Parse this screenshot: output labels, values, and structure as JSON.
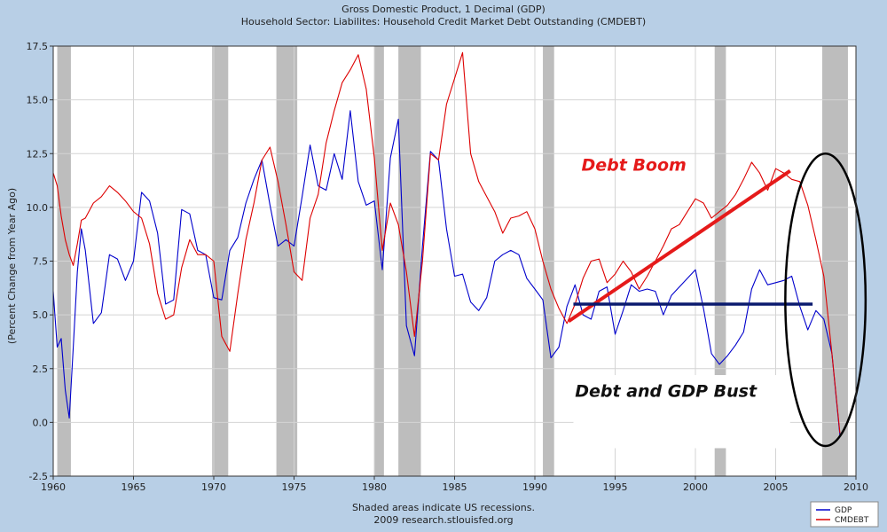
{
  "chart_data": {
    "type": "line",
    "title": "Gross Domestic Product, 1 Decimal (GDP)",
    "subtitle": "Household Sector: Liabilites: Household Credit Market Debt Outstanding (CMDEBT)",
    "ylabel": "(Percent Change from Year Ago)",
    "xlabel": "",
    "xlim": [
      1960,
      2010
    ],
    "ylim": [
      -2.5,
      17.5
    ],
    "x_ticks": [
      "1960",
      "1965",
      "1970",
      "1975",
      "1980",
      "1985",
      "1990",
      "1995",
      "2000",
      "2005",
      "2010"
    ],
    "y_ticks": [
      "17.5",
      "15.0",
      "12.5",
      "10.0",
      "7.5",
      "5.0",
      "2.5",
      "0.0",
      "-2.5"
    ],
    "recessions": [
      [
        1960.25,
        1961.1
      ],
      [
        1969.9,
        1970.9
      ],
      [
        1973.9,
        1975.2
      ],
      [
        1980.0,
        1980.6
      ],
      [
        1981.5,
        1982.9
      ],
      [
        1990.5,
        1991.2
      ],
      [
        2001.2,
        2001.9
      ],
      [
        2007.9,
        2009.5
      ]
    ],
    "series": [
      {
        "name": "GDP",
        "color": "#0000cc",
        "x": [
          1960.0,
          1960.25,
          1960.5,
          1960.75,
          1961.0,
          1961.25,
          1961.5,
          1961.75,
          1962.0,
          1962.5,
          1963.0,
          1963.5,
          1964.0,
          1964.5,
          1965.0,
          1965.5,
          1966.0,
          1966.5,
          1967.0,
          1967.5,
          1968.0,
          1968.5,
          1969.0,
          1969.5,
          1970.0,
          1970.5,
          1971.0,
          1971.5,
          1972.0,
          1972.5,
          1973.0,
          1973.5,
          1974.0,
          1974.5,
          1975.0,
          1975.5,
          1976.0,
          1976.5,
          1977.0,
          1977.5,
          1978.0,
          1978.5,
          1979.0,
          1979.5,
          1980.0,
          1980.5,
          1981.0,
          1981.5,
          1982.0,
          1982.5,
          1983.0,
          1983.5,
          1984.0,
          1984.5,
          1985.0,
          1985.5,
          1986.0,
          1986.5,
          1987.0,
          1987.5,
          1988.0,
          1988.5,
          1989.0,
          1989.5,
          1990.0,
          1990.5,
          1991.0,
          1991.5,
          1992.0,
          1992.5,
          1993.0,
          1993.5,
          1994.0,
          1994.5,
          1995.0,
          1995.5,
          1996.0,
          1996.5,
          1997.0,
          1997.5,
          1998.0,
          1998.5,
          1999.0,
          1999.5,
          2000.0,
          2000.5,
          2001.0,
          2001.5,
          2002.0,
          2002.5,
          2003.0,
          2003.5,
          2004.0,
          2004.5,
          2005.0,
          2005.5,
          2006.0,
          2006.5,
          2007.0,
          2007.5,
          2008.0,
          2008.5,
          2009.0
        ],
        "values": [
          6.1,
          3.5,
          3.9,
          1.5,
          0.2,
          3.5,
          7.0,
          9.0,
          8.0,
          4.6,
          5.1,
          7.8,
          7.6,
          6.6,
          7.5,
          10.7,
          10.3,
          8.8,
          5.5,
          5.7,
          9.9,
          9.7,
          8.0,
          7.8,
          5.8,
          5.7,
          8.0,
          8.6,
          10.2,
          11.3,
          12.2,
          10.1,
          8.2,
          8.5,
          8.2,
          10.5,
          12.9,
          11.0,
          10.8,
          12.5,
          11.3,
          14.5,
          11.2,
          10.1,
          10.3,
          7.1,
          12.3,
          14.1,
          4.5,
          3.1,
          8.2,
          12.6,
          12.2,
          9.0,
          6.8,
          6.9,
          5.6,
          5.2,
          5.8,
          7.5,
          7.8,
          8.0,
          7.8,
          6.7,
          6.2,
          5.7,
          3.0,
          3.5,
          5.4,
          6.4,
          5.0,
          4.8,
          6.1,
          6.3,
          4.1,
          5.2,
          6.4,
          6.1,
          6.2,
          6.1,
          5.0,
          5.9,
          6.3,
          6.7,
          7.1,
          5.3,
          3.2,
          2.7,
          3.1,
          3.6,
          4.2,
          6.2,
          7.1,
          6.4,
          6.5,
          6.6,
          6.8,
          5.4,
          4.3,
          5.2,
          4.8,
          3.2,
          -0.6
        ]
      },
      {
        "name": "CMDEBT",
        "color": "#dd0000",
        "x": [
          1960.0,
          1960.25,
          1960.5,
          1960.75,
          1961.0,
          1961.25,
          1961.5,
          1961.75,
          1962.0,
          1962.5,
          1963.0,
          1963.5,
          1964.0,
          1964.5,
          1965.0,
          1965.5,
          1966.0,
          1966.5,
          1967.0,
          1967.5,
          1968.0,
          1968.5,
          1969.0,
          1969.5,
          1970.0,
          1970.5,
          1971.0,
          1971.5,
          1972.0,
          1972.5,
          1973.0,
          1973.5,
          1974.0,
          1974.5,
          1975.0,
          1975.5,
          1976.0,
          1976.5,
          1977.0,
          1977.5,
          1978.0,
          1978.5,
          1979.0,
          1979.5,
          1980.0,
          1980.5,
          1981.0,
          1981.5,
          1982.0,
          1982.5,
          1983.0,
          1983.5,
          1984.0,
          1984.5,
          1985.0,
          1985.5,
          1986.0,
          1986.5,
          1987.0,
          1987.5,
          1988.0,
          1988.5,
          1989.0,
          1989.5,
          1990.0,
          1990.5,
          1991.0,
          1991.5,
          1992.0,
          1992.5,
          1993.0,
          1993.5,
          1994.0,
          1994.5,
          1995.0,
          1995.5,
          1996.0,
          1996.5,
          1997.0,
          1997.5,
          1998.0,
          1998.5,
          1999.0,
          1999.5,
          2000.0,
          2000.5,
          2001.0,
          2001.5,
          2002.0,
          2002.5,
          2003.0,
          2003.5,
          2004.0,
          2004.5,
          2005.0,
          2005.5,
          2006.0,
          2006.5,
          2007.0,
          2007.5,
          2008.0,
          2008.5,
          2009.0
        ],
        "values": [
          11.6,
          11.0,
          9.6,
          8.5,
          7.8,
          7.3,
          8.3,
          9.4,
          9.5,
          10.2,
          10.5,
          11.0,
          10.7,
          10.3,
          9.8,
          9.5,
          8.3,
          6.0,
          4.8,
          5.0,
          7.2,
          8.5,
          7.8,
          7.8,
          7.5,
          4.0,
          3.3,
          6.0,
          8.5,
          10.2,
          12.2,
          12.8,
          11.2,
          9.2,
          7.0,
          6.6,
          9.5,
          10.6,
          13.0,
          14.5,
          15.8,
          16.4,
          17.1,
          15.5,
          12.3,
          8.0,
          10.2,
          9.2,
          7.0,
          4.0,
          7.5,
          12.5,
          12.2,
          14.8,
          16.0,
          17.2,
          12.5,
          11.2,
          10.5,
          9.8,
          8.8,
          9.5,
          9.6,
          9.8,
          9.0,
          7.5,
          6.2,
          5.3,
          4.6,
          5.5,
          6.7,
          7.5,
          7.6,
          6.5,
          6.9,
          7.5,
          7.0,
          6.2,
          6.8,
          7.5,
          8.2,
          9.0,
          9.2,
          9.8,
          10.4,
          10.2,
          9.5,
          9.8,
          10.1,
          10.6,
          11.3,
          12.1,
          11.6,
          10.8,
          11.8,
          11.6,
          11.3,
          11.2,
          10.1,
          8.5,
          6.8,
          3.2,
          -0.5
        ]
      }
    ],
    "annotations": {
      "debt_boom": "Debt Boom",
      "bust": "Debt and GDP Bust"
    },
    "trend_lines": [
      {
        "name": "debt-boom-trend",
        "color": "#e51a1a",
        "x": [
          1992.1,
          2005.9
        ],
        "y": [
          4.7,
          11.7
        ]
      },
      {
        "name": "gdp-flat-trend",
        "color": "#0a1a6e",
        "x": [
          1992.4,
          2007.3
        ],
        "y": [
          5.5,
          5.5
        ]
      }
    ],
    "highlight": {
      "name": "bust-ellipse",
      "x_center": 2008.1,
      "y_center": 5.7,
      "x_radius": 2.5,
      "y_radius": 6.8
    },
    "legend": {
      "position": "bottom-right",
      "entries": [
        "GDP",
        "CMDEBT"
      ]
    }
  },
  "footer": {
    "line1": "Shaded areas indicate US recessions.",
    "line2": "2009 research.stlouisfed.org"
  }
}
